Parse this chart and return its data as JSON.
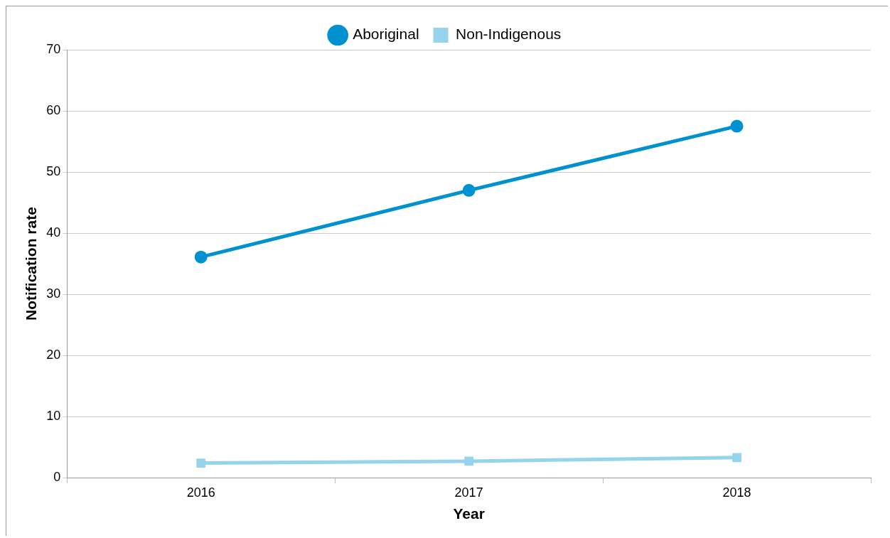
{
  "chart_data": {
    "type": "line",
    "xlabel": "Year",
    "ylabel": "Notification rate",
    "categories": [
      "2016",
      "2017",
      "2018"
    ],
    "series": [
      {
        "name": "Aboriginal",
        "color": "#0092d0",
        "marker": "circle",
        "values": [
          36.1,
          47.0,
          57.5
        ]
      },
      {
        "name": "Non-Indigenous",
        "color": "#96d3ed",
        "marker": "square",
        "values": [
          2.4,
          2.7,
          3.3
        ]
      }
    ],
    "ylim": [
      0,
      70
    ],
    "yticks": [
      0,
      10,
      20,
      30,
      40,
      50,
      60,
      70
    ],
    "grid": "y",
    "legend": "top",
    "line_style": "solid"
  }
}
